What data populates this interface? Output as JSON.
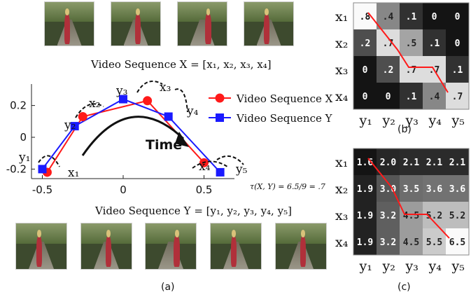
{
  "panel_a": {
    "caption_x": "Video Sequence X = [x₁, x₂, x₃, x₄]",
    "caption_y": "Video Sequence Y = [y₁, y₂, y₃, y₄, y₅]",
    "label": "(a)",
    "legend_x": "Video Sequence X",
    "legend_y": "Video Sequence Y",
    "time_label": "Time",
    "tau_formula": "τ(X, Y) = 6.5/9 = .7",
    "point_labels_x": [
      "x₁",
      "x₂",
      "x₃",
      "x₄"
    ],
    "point_labels_y": [
      "y₁",
      "y₂",
      "y₃",
      "y₄",
      "y₅"
    ]
  },
  "panel_b": {
    "label": "(b)",
    "row_labels": [
      "x₁",
      "x₂",
      "x₃",
      "x₄"
    ],
    "col_labels": [
      "y₁",
      "y₂",
      "y₃",
      "y₄",
      "y₅"
    ],
    "cells": [
      [
        ".8",
        ".4",
        ".1",
        "0",
        "0"
      ],
      [
        ".2",
        ".7",
        ".5",
        ".1",
        "0"
      ],
      [
        "0",
        ".2",
        ".7",
        ".7",
        ".1"
      ],
      [
        "0",
        "0",
        ".1",
        ".4",
        ".7"
      ]
    ],
    "values": [
      [
        0.8,
        0.4,
        0.1,
        0,
        0
      ],
      [
        0.2,
        0.7,
        0.5,
        0.1,
        0
      ],
      [
        0,
        0.2,
        0.7,
        0.7,
        0.1
      ],
      [
        0,
        0,
        0.1,
        0.4,
        0.7
      ]
    ]
  },
  "panel_c": {
    "label": "(c)",
    "row_labels": [
      "x₁",
      "x₂",
      "x₃",
      "x₄"
    ],
    "col_labels": [
      "y₁",
      "y₂",
      "y₃",
      "y₄",
      "y₅"
    ],
    "cells": [
      [
        "1.6",
        "2.0",
        "2.1",
        "2.1",
        "2.1"
      ],
      [
        "1.9",
        "3.0",
        "3.5",
        "3.6",
        "3.6"
      ],
      [
        "1.9",
        "3.2",
        "4.5",
        "5.2",
        "5.2"
      ],
      [
        "1.9",
        "3.2",
        "4.5",
        "5.5",
        "6.5"
      ]
    ],
    "values": [
      [
        1.6,
        2.0,
        2.1,
        2.1,
        2.1
      ],
      [
        1.9,
        3.0,
        3.5,
        3.6,
        3.6
      ],
      [
        1.9,
        3.2,
        4.5,
        5.2,
        5.2
      ],
      [
        1.9,
        3.2,
        4.5,
        5.5,
        6.5
      ]
    ]
  },
  "chart_data": {
    "type": "line",
    "series": [
      {
        "name": "Video Sequence X",
        "x": [
          -0.47,
          -0.25,
          0.15,
          0.5
        ],
        "y": [
          -0.22,
          0.13,
          0.23,
          -0.16
        ]
      },
      {
        "name": "Video Sequence Y",
        "x": [
          -0.5,
          -0.3,
          0,
          0.28,
          0.6
        ],
        "y": [
          -0.2,
          0.07,
          0.24,
          0.13,
          -0.22
        ]
      }
    ],
    "xlim": [
      -0.6,
      0.7
    ],
    "ylim": [
      -0.27,
      0.3
    ],
    "xticks": [
      "-0.5",
      "0",
      "0.5"
    ],
    "yticks": [
      "-0.2",
      "0",
      "0.2"
    ],
    "legend_position": "top-right",
    "colors": {
      "x": "#ff1a1a",
      "y": "#1a1aff"
    }
  }
}
